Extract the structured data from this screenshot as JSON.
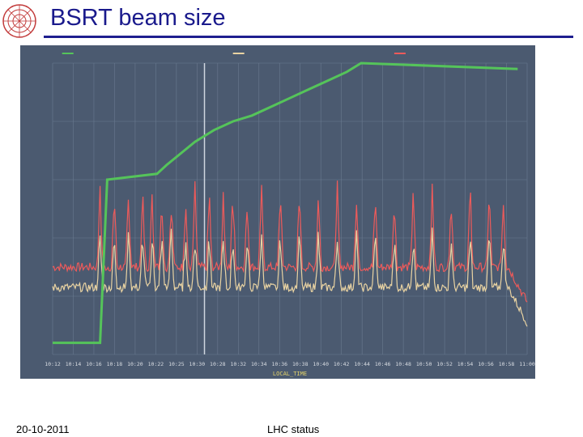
{
  "slide": {
    "title": "BSRT beam size",
    "footer_date": "20-10-2011",
    "footer_center": "LHC status"
  },
  "colors": {
    "plot_bg": "#4b5a70",
    "grid": "#6a7a90",
    "vertical_marker": "#cfd6df",
    "energy": "#55c45a",
    "sigma_h": "#e9d3a2",
    "sigma_v": "#ee5a5a",
    "title": "#1a1a8c"
  },
  "chart_data": {
    "type": "line",
    "xlabel": "LOCAL_TIME",
    "x_ticks": [
      "10:12",
      "10:14",
      "10:16",
      "10:18",
      "10:20",
      "10:22",
      "10:25",
      "10:30",
      "10:28",
      "10:32",
      "10:34",
      "10:36",
      "10:38",
      "10:40",
      "10:42",
      "10:44",
      "10:46",
      "10:48",
      "10:50",
      "10:52",
      "10:54",
      "10:56",
      "10:58",
      "11:00"
    ],
    "grid": true,
    "legend": "top",
    "energy_series": {
      "color": "#55c45a",
      "points": [
        [
          0,
          0.04
        ],
        [
          0.1,
          0.04
        ],
        [
          0.115,
          0.6
        ],
        [
          0.22,
          0.62
        ],
        [
          0.24,
          0.65
        ],
        [
          0.27,
          0.69
        ],
        [
          0.3,
          0.73
        ],
        [
          0.34,
          0.77
        ],
        [
          0.38,
          0.8
        ],
        [
          0.42,
          0.82
        ],
        [
          0.46,
          0.85
        ],
        [
          0.5,
          0.88
        ],
        [
          0.54,
          0.91
        ],
        [
          0.58,
          0.94
        ],
        [
          0.62,
          0.97
        ],
        [
          0.65,
          1.0
        ],
        [
          0.98,
          0.98
        ]
      ]
    },
    "sigma_v_series": {
      "color": "#ee5a5a",
      "baseline": 0.3,
      "spike_max": 0.6
    },
    "sigma_h_series": {
      "color": "#e9d3a2",
      "baseline": 0.23,
      "spike_max": 0.45
    },
    "vertical_markers": [
      0.32
    ],
    "spike_positions": [
      0.1,
      0.13,
      0.16,
      0.19,
      0.21,
      0.23,
      0.25,
      0.28,
      0.3,
      0.33,
      0.36,
      0.38,
      0.41,
      0.44,
      0.48,
      0.52,
      0.56,
      0.6,
      0.64,
      0.68,
      0.72,
      0.76,
      0.8,
      0.84,
      0.88,
      0.92,
      0.95
    ]
  }
}
